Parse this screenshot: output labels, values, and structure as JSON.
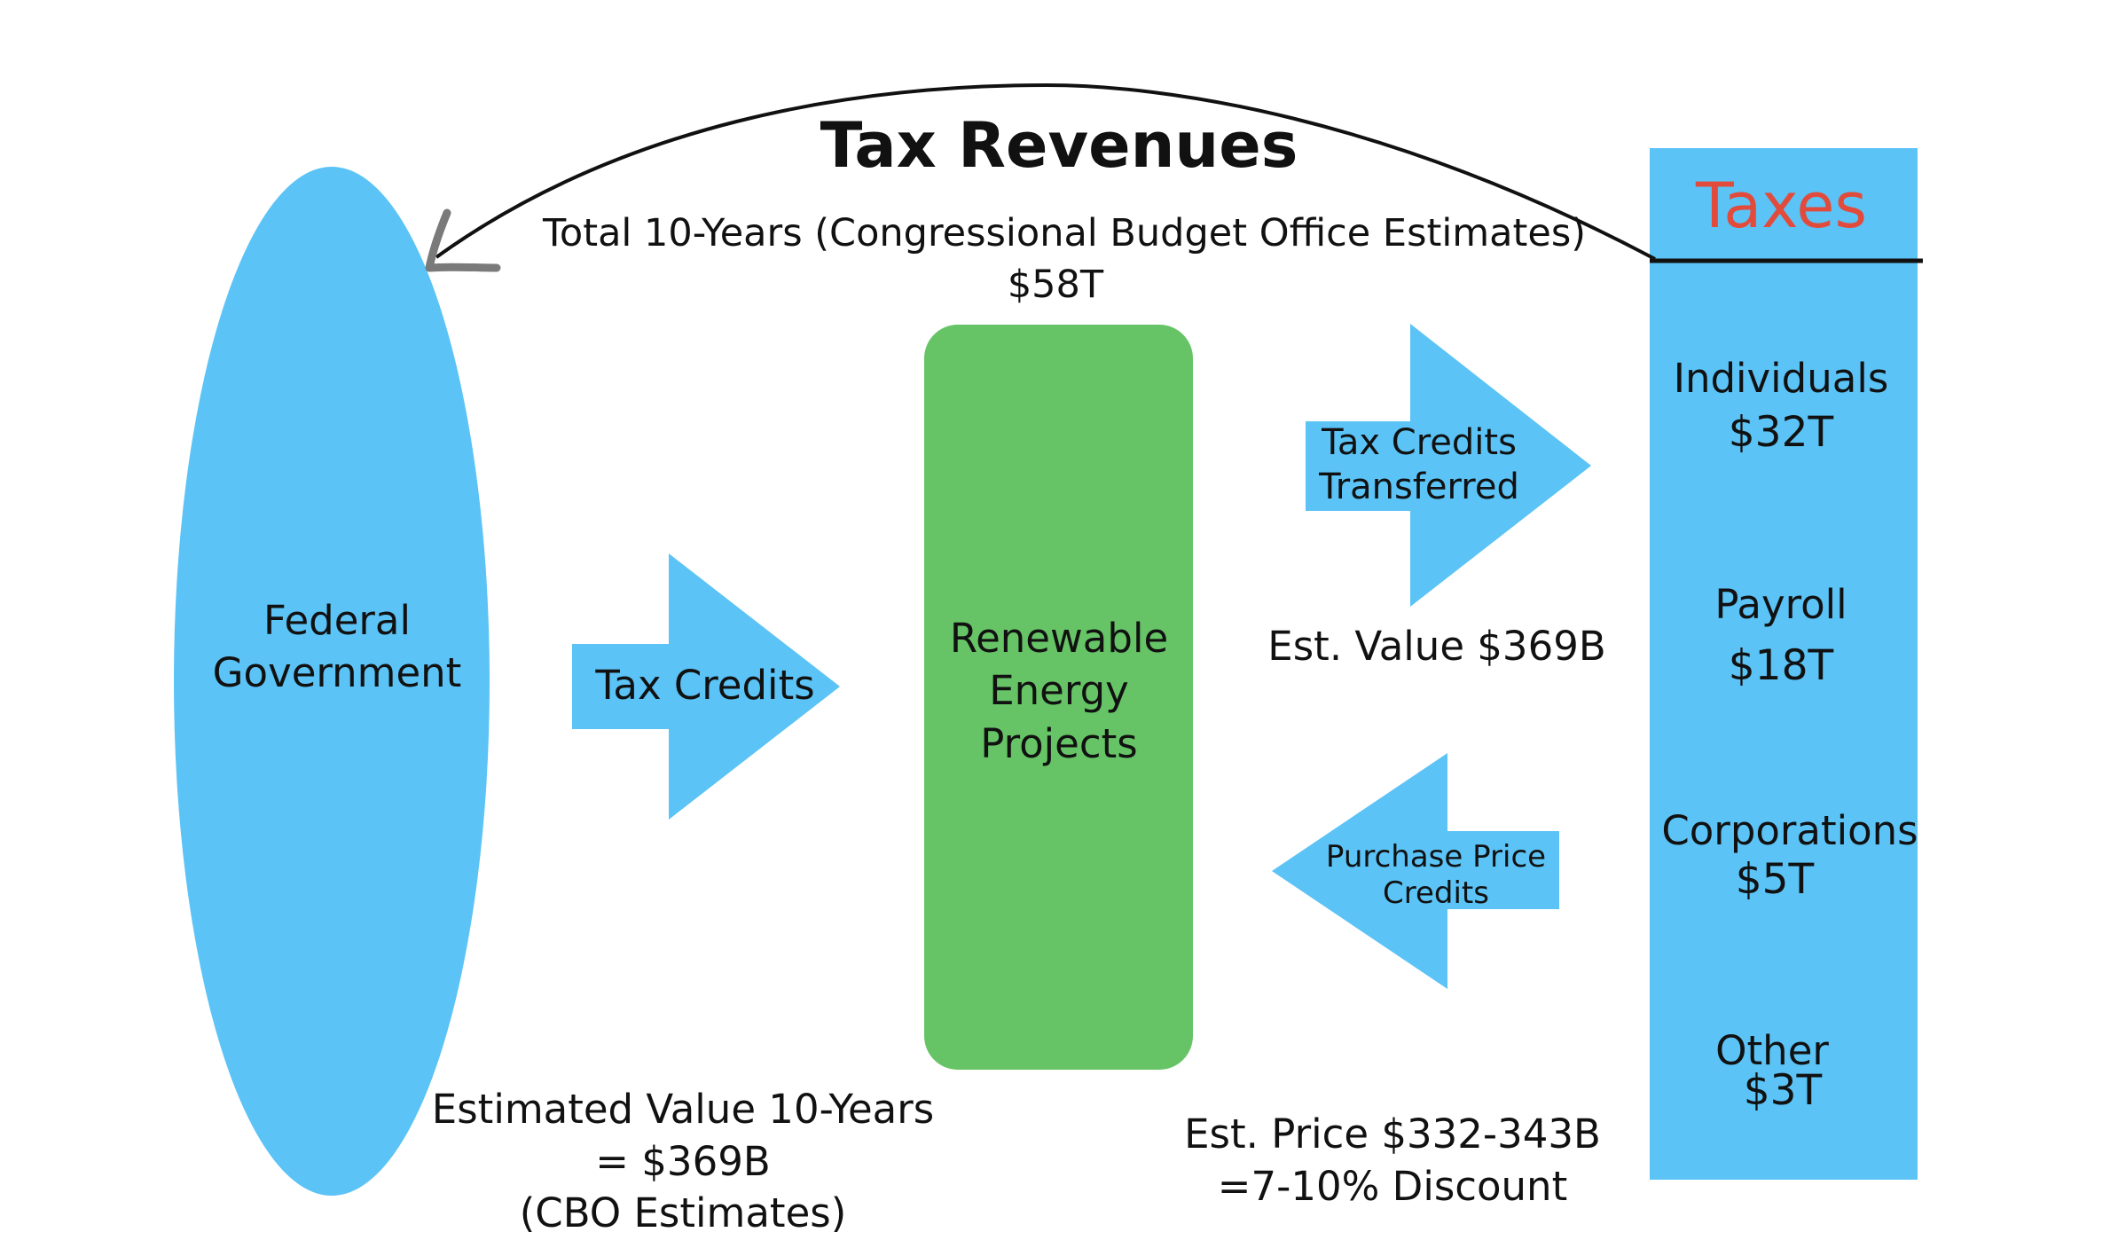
{
  "title": "Tax Revenues",
  "subtitle": "Total 10-Years (Congressional Budget Office Estimates)",
  "total": "$58T",
  "federal": {
    "line1": "Federal",
    "line2": "Government"
  },
  "tax_credits_label": "Tax Credits",
  "renewable": {
    "line1": "Renewable",
    "line2": "Energy",
    "line3": "Projects"
  },
  "transferred": {
    "line1": "Tax Credits",
    "line2": "Transferred"
  },
  "est_value": "Est. Value $369B",
  "purchase": {
    "line1": "Purchase Price",
    "line2": "Credits"
  },
  "estimated_bottom": {
    "line1": "Estimated Value 10-Years",
    "line2": "= $369B",
    "line3": "(CBO Estimates)"
  },
  "est_price": {
    "line1": "Est. Price $332-343B",
    "line2": "=7-10% Discount"
  },
  "taxes": {
    "header": "Taxes",
    "items": [
      {
        "label": "Individuals",
        "value": "$32T"
      },
      {
        "label": "Payroll",
        "value": "$18T"
      },
      {
        "label": "Corporations",
        "value": "$5T"
      },
      {
        "label": "Other",
        "value": "$3T"
      }
    ]
  },
  "colors": {
    "blue": "#5bc3f6",
    "green": "#66c466",
    "taxes_header": "#e24b3b",
    "arrow_head": "#7a7a7a"
  }
}
